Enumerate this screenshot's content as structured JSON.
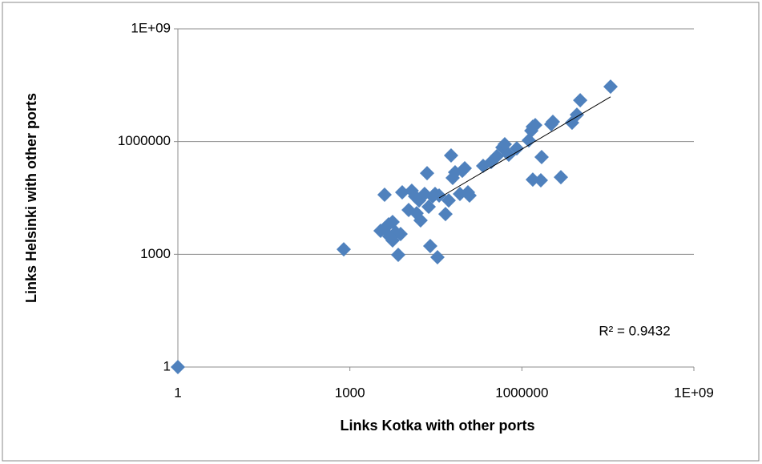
{
  "chart_data": {
    "type": "scatter",
    "xlabel": "Links Kotka with other ports",
    "ylabel": "Links Helsinki with other ports",
    "annotation": "R² = 0.9432",
    "xscale": "log",
    "yscale": "log",
    "grid": true,
    "trendline": true,
    "xlim": [
      1,
      1000000000
    ],
    "ylim": [
      1,
      1000000000
    ],
    "xticks": [
      1,
      1000,
      1000000,
      {
        "value": 1000000000,
        "label": "1E+09"
      }
    ],
    "yticks": [
      1,
      1000,
      1000000,
      {
        "value": 1000000000,
        "label": "1E+09"
      }
    ],
    "series": [
      {
        "color": "#4f81bd",
        "x": [
          1,
          781,
          6970,
          33700,
          4030,
          4030,
          4730,
          5560,
          6320,
          7670,
          8180,
          10600,
          12000,
          13700,
          14600,
          16100,
          17100,
          20100,
          22200,
          23700,
          25200,
          27800,
          30600,
          36000,
          46500,
          52900,
          58200,
          62100,
          68400,
          83000,
          91400,
          100700,
          114500,
          122000,
          211000,
          291000,
          365000,
          457000,
          503000,
          591000,
          815000,
          1320000,
          1460000,
          1550000,
          1710000,
          2210000,
          2140000,
          1550000,
          3470000,
          3250000,
          4790000,
          7500000,
          9100000,
          10400000,
          35200000,
          3430,
          4890,
          5560
        ],
        "values": [
          1,
          1360,
          970,
          834,
          38400,
          4880,
          6240,
          7230,
          3820,
          3460,
          44500,
          15100,
          49100,
          34800,
          12400,
          27200,
          7980,
          40300,
          144000,
          18400,
          1660,
          34800,
          40300,
          36600,
          11800,
          27200,
          426000,
          108000,
          152000,
          40300,
          167000,
          194000,
          44500,
          36600,
          225000,
          287000,
          406000,
          696000,
          847000,
          447000,
          662000,
          1080000,
          1950000,
          2490000,
          2750000,
          386000,
          92900,
          97500,
          3350000,
          2890000,
          113000,
          3180000,
          5200000,
          12600000,
          29000000,
          4210,
          2990,
          2340
        ]
      }
    ]
  }
}
